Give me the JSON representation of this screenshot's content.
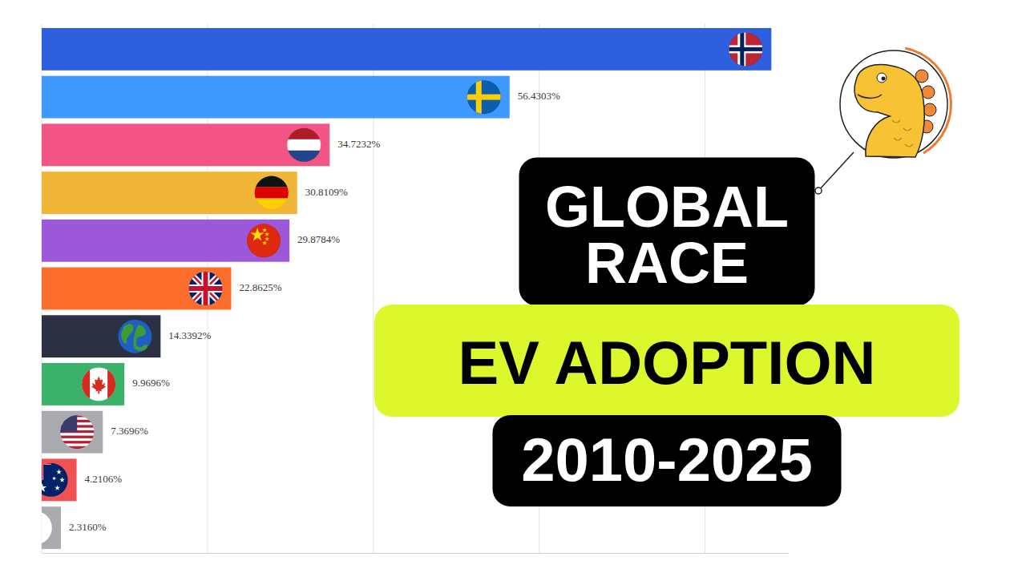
{
  "chart_data": {
    "type": "bar",
    "orientation": "horizontal",
    "title": "GLOBAL RACE",
    "subtitle": "EV ADOPTION",
    "annotations": [
      "2010-2025"
    ],
    "categories": [
      null,
      null,
      null,
      null,
      null,
      null,
      null,
      null,
      null,
      null,
      null
    ],
    "values": [
      88.0,
      56.4303,
      34.7232,
      30.8109,
      29.8784,
      22.8625,
      14.3392,
      9.9696,
      7.3696,
      4.2106,
      2.316
    ],
    "value_labels": [
      null,
      "56.4303%",
      "34.7232%",
      "30.8109%",
      "29.8784%",
      "22.8625%",
      "14.3392%",
      "9.9696%",
      "7.3696%",
      "4.2106%",
      "2.3160%"
    ],
    "colors": [
      "#2d5fde",
      "#3d99fd",
      "#f25585",
      "#f0b537",
      "#9b59d9",
      "#fd6e2c",
      "#2b3143",
      "#3ab26a",
      "#a9abae",
      "#ee5252",
      "#a9abae"
    ],
    "xlim": [
      0,
      90
    ],
    "xticks": [
      0,
      20,
      40,
      60,
      80
    ],
    "grid": true,
    "data_labels": true,
    "tick_labels": false
  }
}
